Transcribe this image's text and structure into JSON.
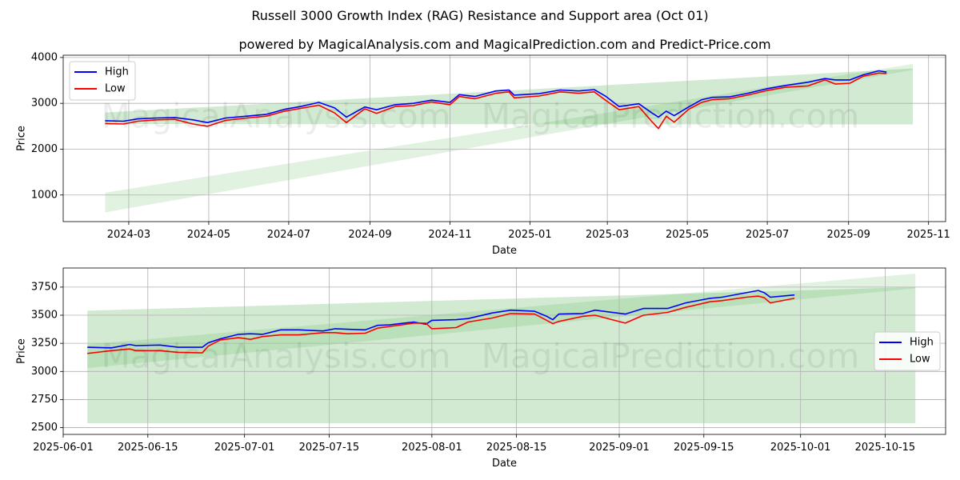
{
  "figure": {
    "title": "Russell 3000 Growth Index (RAG) Resistance and Support area (Oct 01)",
    "subtitle": "powered by MagicalAnalysis.com and MagicalPrediction.com and Predict-Price.com",
    "watermark_left": "MagicalAnalysis.com",
    "watermark_right": "MagicalPrediction.com"
  },
  "colors": {
    "high": "#0000ff",
    "low": "#ff0000",
    "band": "#2ca02c",
    "grid": "#b0b0b0"
  },
  "chart_data": [
    {
      "type": "line",
      "xlabel": "Date",
      "ylabel": "Price",
      "xlim": [
        "2024-01-11",
        "2025-11-14"
      ],
      "ylim": [
        420,
        4050
      ],
      "grid": true,
      "legend": {
        "position": "top-left",
        "entries": [
          "High",
          "Low"
        ]
      },
      "x_ticks": [
        "2024-03",
        "2024-05",
        "2024-07",
        "2024-09",
        "2024-11",
        "2025-01",
        "2025-03",
        "2025-05",
        "2025-07",
        "2025-09",
        "2025-11"
      ],
      "y_ticks": [
        1000,
        2000,
        3000,
        4000
      ],
      "series": [
        {
          "name": "High",
          "points": [
            [
              "2024-02-12",
              2620
            ],
            [
              "2024-02-26",
              2610
            ],
            [
              "2024-03-08",
              2660
            ],
            [
              "2024-03-22",
              2680
            ],
            [
              "2024-04-05",
              2690
            ],
            [
              "2024-04-19",
              2640
            ],
            [
              "2024-04-30",
              2580
            ],
            [
              "2024-05-14",
              2680
            ],
            [
              "2024-05-30",
              2720
            ],
            [
              "2024-06-14",
              2760
            ],
            [
              "2024-06-28",
              2870
            ],
            [
              "2024-07-10",
              2930
            ],
            [
              "2024-07-24",
              3020
            ],
            [
              "2024-08-05",
              2900
            ],
            [
              "2024-08-14",
              2700
            ],
            [
              "2024-08-28",
              2920
            ],
            [
              "2024-09-06",
              2860
            ],
            [
              "2024-09-20",
              2970
            ],
            [
              "2024-10-04",
              3000
            ],
            [
              "2024-10-18",
              3070
            ],
            [
              "2024-11-01",
              3020
            ],
            [
              "2024-11-08",
              3190
            ],
            [
              "2024-11-20",
              3150
            ],
            [
              "2024-12-06",
              3270
            ],
            [
              "2024-12-16",
              3290
            ],
            [
              "2024-12-20",
              3180
            ],
            [
              "2025-01-08",
              3210
            ],
            [
              "2025-01-24",
              3290
            ],
            [
              "2025-02-07",
              3270
            ],
            [
              "2025-02-19",
              3300
            ],
            [
              "2025-02-28",
              3150
            ],
            [
              "2025-03-10",
              2930
            ],
            [
              "2025-03-25",
              2990
            ],
            [
              "2025-04-04",
              2790
            ],
            [
              "2025-04-09",
              2700
            ],
            [
              "2025-04-15",
              2830
            ],
            [
              "2025-04-21",
              2730
            ],
            [
              "2025-05-02",
              2920
            ],
            [
              "2025-05-12",
              3080
            ],
            [
              "2025-05-20",
              3130
            ],
            [
              "2025-06-02",
              3140
            ],
            [
              "2025-06-16",
              3220
            ],
            [
              "2025-07-01",
              3320
            ],
            [
              "2025-07-15",
              3390
            ],
            [
              "2025-08-01",
              3460
            ],
            [
              "2025-08-14",
              3540
            ],
            [
              "2025-08-22",
              3510
            ],
            [
              "2025-09-02",
              3510
            ],
            [
              "2025-09-12",
              3620
            ],
            [
              "2025-09-24",
              3710
            ],
            [
              "2025-09-30",
              3680
            ]
          ]
        },
        {
          "name": "Low",
          "points": [
            [
              "2024-02-12",
              2560
            ],
            [
              "2024-02-26",
              2550
            ],
            [
              "2024-03-08",
              2610
            ],
            [
              "2024-03-22",
              2640
            ],
            [
              "2024-04-05",
              2650
            ],
            [
              "2024-04-19",
              2550
            ],
            [
              "2024-04-30",
              2500
            ],
            [
              "2024-05-14",
              2630
            ],
            [
              "2024-05-30",
              2680
            ],
            [
              "2024-06-14",
              2720
            ],
            [
              "2024-06-28",
              2830
            ],
            [
              "2024-07-10",
              2890
            ],
            [
              "2024-07-24",
              2960
            ],
            [
              "2024-08-05",
              2790
            ],
            [
              "2024-08-14",
              2580
            ],
            [
              "2024-08-28",
              2880
            ],
            [
              "2024-09-06",
              2780
            ],
            [
              "2024-09-20",
              2930
            ],
            [
              "2024-10-04",
              2950
            ],
            [
              "2024-10-18",
              3030
            ],
            [
              "2024-11-01",
              2970
            ],
            [
              "2024-11-08",
              3150
            ],
            [
              "2024-11-20",
              3100
            ],
            [
              "2024-12-06",
              3220
            ],
            [
              "2024-12-16",
              3250
            ],
            [
              "2024-12-20",
              3120
            ],
            [
              "2025-01-08",
              3160
            ],
            [
              "2025-01-24",
              3250
            ],
            [
              "2025-02-07",
              3220
            ],
            [
              "2025-02-19",
              3250
            ],
            [
              "2025-02-28",
              3060
            ],
            [
              "2025-03-10",
              2860
            ],
            [
              "2025-03-25",
              2930
            ],
            [
              "2025-04-04",
              2600
            ],
            [
              "2025-04-09",
              2450
            ],
            [
              "2025-04-15",
              2720
            ],
            [
              "2025-04-21",
              2590
            ],
            [
              "2025-05-02",
              2870
            ],
            [
              "2025-05-12",
              3020
            ],
            [
              "2025-05-20",
              3080
            ],
            [
              "2025-06-02",
              3100
            ],
            [
              "2025-06-16",
              3180
            ],
            [
              "2025-07-01",
              3280
            ],
            [
              "2025-07-15",
              3350
            ],
            [
              "2025-08-01",
              3380
            ],
            [
              "2025-08-14",
              3510
            ],
            [
              "2025-08-22",
              3420
            ],
            [
              "2025-09-02",
              3440
            ],
            [
              "2025-09-12",
              3590
            ],
            [
              "2025-09-24",
              3660
            ],
            [
              "2025-09-30",
              3650
            ]
          ]
        }
      ],
      "bands": [
        {
          "x": [
            "2024-02-12",
            "2025-10-20"
          ],
          "upper": [
            2800,
            3760
          ],
          "lower": [
            2550,
            2540
          ],
          "opacity": 0.22
        },
        {
          "x": [
            "2024-02-12",
            "2025-10-20"
          ],
          "upper": [
            1050,
            3860
          ],
          "lower": [
            620,
            3730
          ],
          "opacity": 0.14
        }
      ]
    },
    {
      "type": "line",
      "xlabel": "Date",
      "ylabel": "Price",
      "xlim": [
        "2025-06-01",
        "2025-10-25"
      ],
      "ylim": [
        2440,
        3920
      ],
      "grid": true,
      "legend": {
        "position": "center-right",
        "entries": [
          "High",
          "Low"
        ]
      },
      "x_ticks": [
        "2025-06-01",
        "2025-06-15",
        "2025-07-01",
        "2025-07-15",
        "2025-08-01",
        "2025-08-15",
        "2025-09-01",
        "2025-09-15",
        "2025-10-01",
        "2025-10-15"
      ],
      "y_ticks": [
        2500,
        2750,
        3000,
        3250,
        3500,
        3750
      ],
      "series": [
        {
          "name": "High",
          "points": [
            [
              "2025-06-05",
              3215
            ],
            [
              "2025-06-09",
              3210
            ],
            [
              "2025-06-12",
              3240
            ],
            [
              "2025-06-13",
              3230
            ],
            [
              "2025-06-17",
              3235
            ],
            [
              "2025-06-20",
              3215
            ],
            [
              "2025-06-24",
              3215
            ],
            [
              "2025-06-25",
              3255
            ],
            [
              "2025-06-27",
              3290
            ],
            [
              "2025-06-30",
              3330
            ],
            [
              "2025-07-02",
              3335
            ],
            [
              "2025-07-04",
              3330
            ],
            [
              "2025-07-07",
              3370
            ],
            [
              "2025-07-10",
              3370
            ],
            [
              "2025-07-14",
              3360
            ],
            [
              "2025-07-16",
              3380
            ],
            [
              "2025-07-18",
              3375
            ],
            [
              "2025-07-21",
              3370
            ],
            [
              "2025-07-23",
              3410
            ],
            [
              "2025-07-25",
              3415
            ],
            [
              "2025-07-29",
              3440
            ],
            [
              "2025-07-31",
              3420
            ],
            [
              "2025-08-01",
              3455
            ],
            [
              "2025-08-05",
              3460
            ],
            [
              "2025-08-07",
              3470
            ],
            [
              "2025-08-11",
              3520
            ],
            [
              "2025-08-14",
              3545
            ],
            [
              "2025-08-18",
              3535
            ],
            [
              "2025-08-20",
              3490
            ],
            [
              "2025-08-21",
              3460
            ],
            [
              "2025-08-22",
              3510
            ],
            [
              "2025-08-26",
              3515
            ],
            [
              "2025-08-28",
              3545
            ],
            [
              "2025-09-02",
              3510
            ],
            [
              "2025-09-05",
              3560
            ],
            [
              "2025-09-09",
              3560
            ],
            [
              "2025-09-12",
              3610
            ],
            [
              "2025-09-16",
              3650
            ],
            [
              "2025-09-18",
              3660
            ],
            [
              "2025-09-22",
              3700
            ],
            [
              "2025-09-24",
              3720
            ],
            [
              "2025-09-25",
              3700
            ],
            [
              "2025-09-26",
              3660
            ],
            [
              "2025-09-30",
              3680
            ]
          ]
        },
        {
          "name": "Low",
          "points": [
            [
              "2025-06-05",
              3160
            ],
            [
              "2025-06-09",
              3185
            ],
            [
              "2025-06-12",
              3200
            ],
            [
              "2025-06-13",
              3185
            ],
            [
              "2025-06-17",
              3185
            ],
            [
              "2025-06-20",
              3170
            ],
            [
              "2025-06-24",
              3165
            ],
            [
              "2025-06-25",
              3225
            ],
            [
              "2025-06-27",
              3280
            ],
            [
              "2025-06-30",
              3300
            ],
            [
              "2025-07-02",
              3285
            ],
            [
              "2025-07-04",
              3310
            ],
            [
              "2025-07-07",
              3325
            ],
            [
              "2025-07-10",
              3325
            ],
            [
              "2025-07-14",
              3345
            ],
            [
              "2025-07-16",
              3345
            ],
            [
              "2025-07-18",
              3335
            ],
            [
              "2025-07-21",
              3340
            ],
            [
              "2025-07-23",
              3385
            ],
            [
              "2025-07-25",
              3400
            ],
            [
              "2025-07-29",
              3430
            ],
            [
              "2025-07-31",
              3430
            ],
            [
              "2025-08-01",
              3380
            ],
            [
              "2025-08-05",
              3390
            ],
            [
              "2025-08-07",
              3440
            ],
            [
              "2025-08-11",
              3475
            ],
            [
              "2025-08-14",
              3515
            ],
            [
              "2025-08-18",
              3510
            ],
            [
              "2025-08-20",
              3455
            ],
            [
              "2025-08-21",
              3425
            ],
            [
              "2025-08-22",
              3445
            ],
            [
              "2025-08-26",
              3490
            ],
            [
              "2025-08-28",
              3500
            ],
            [
              "2025-09-02",
              3430
            ],
            [
              "2025-09-05",
              3500
            ],
            [
              "2025-09-09",
              3525
            ],
            [
              "2025-09-12",
              3570
            ],
            [
              "2025-09-16",
              3620
            ],
            [
              "2025-09-18",
              3630
            ],
            [
              "2025-09-22",
              3660
            ],
            [
              "2025-09-24",
              3670
            ],
            [
              "2025-09-25",
              3655
            ],
            [
              "2025-09-26",
              3610
            ],
            [
              "2025-09-30",
              3650
            ]
          ]
        }
      ],
      "bands": [
        {
          "x": [
            "2025-06-05",
            "2025-10-20"
          ],
          "upper": [
            3540,
            3750
          ],
          "lower": [
            2540,
            2540
          ],
          "opacity": 0.22
        },
        {
          "x": [
            "2025-06-05",
            "2025-10-20"
          ],
          "upper": [
            3240,
            3870
          ],
          "lower": [
            3030,
            3740
          ],
          "opacity": 0.14
        }
      ]
    }
  ]
}
